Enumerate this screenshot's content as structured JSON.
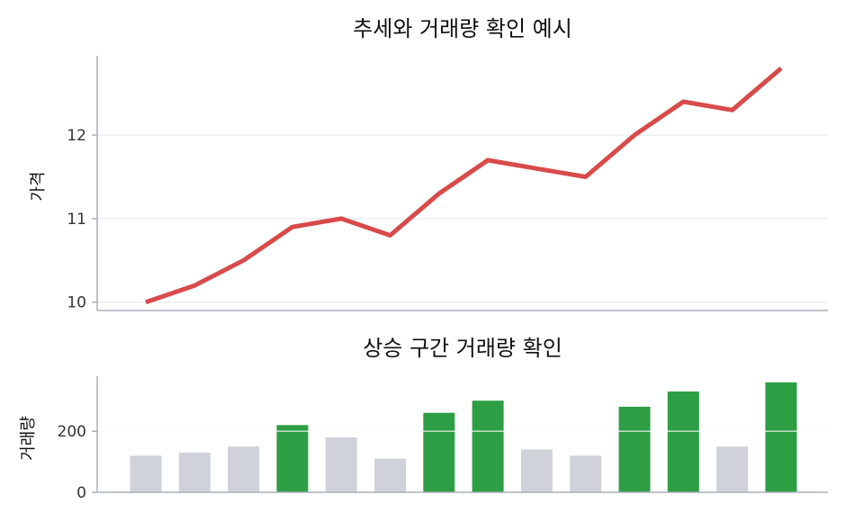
{
  "chart_data": [
    {
      "type": "line",
      "title": "추세와 거래량 확인 예시",
      "ylabel": "가격",
      "xlabel": "",
      "ylim": [
        9.9,
        12.95
      ],
      "yticks": [
        "10",
        "11",
        "12"
      ],
      "grid": "horizontal",
      "series": [
        {
          "values": [
            10.0,
            10.2,
            10.5,
            10.9,
            11.0,
            10.8,
            11.3,
            11.7,
            11.6,
            11.5,
            12.0,
            12.4,
            12.3,
            12.8
          ]
        }
      ]
    },
    {
      "type": "bar",
      "title": "상승 구간 거래량 확인",
      "ylabel": "거래량",
      "xlabel": "",
      "ylim": [
        0,
        380
      ],
      "yticks": [
        "0",
        "200"
      ],
      "grid": "horizontal",
      "values": [
        120,
        130,
        150,
        220,
        180,
        110,
        260,
        300,
        140,
        120,
        280,
        330,
        150,
        360
      ],
      "highlight": [
        false,
        false,
        false,
        true,
        false,
        false,
        true,
        true,
        false,
        false,
        true,
        true,
        false,
        true
      ]
    }
  ],
  "colors": {
    "line": "#d94a4a",
    "bar_up": "#2e9e44",
    "bar_normal": "#cfd3d9",
    "axis": "#a9b0b8",
    "grid": "#e4e7eb"
  }
}
